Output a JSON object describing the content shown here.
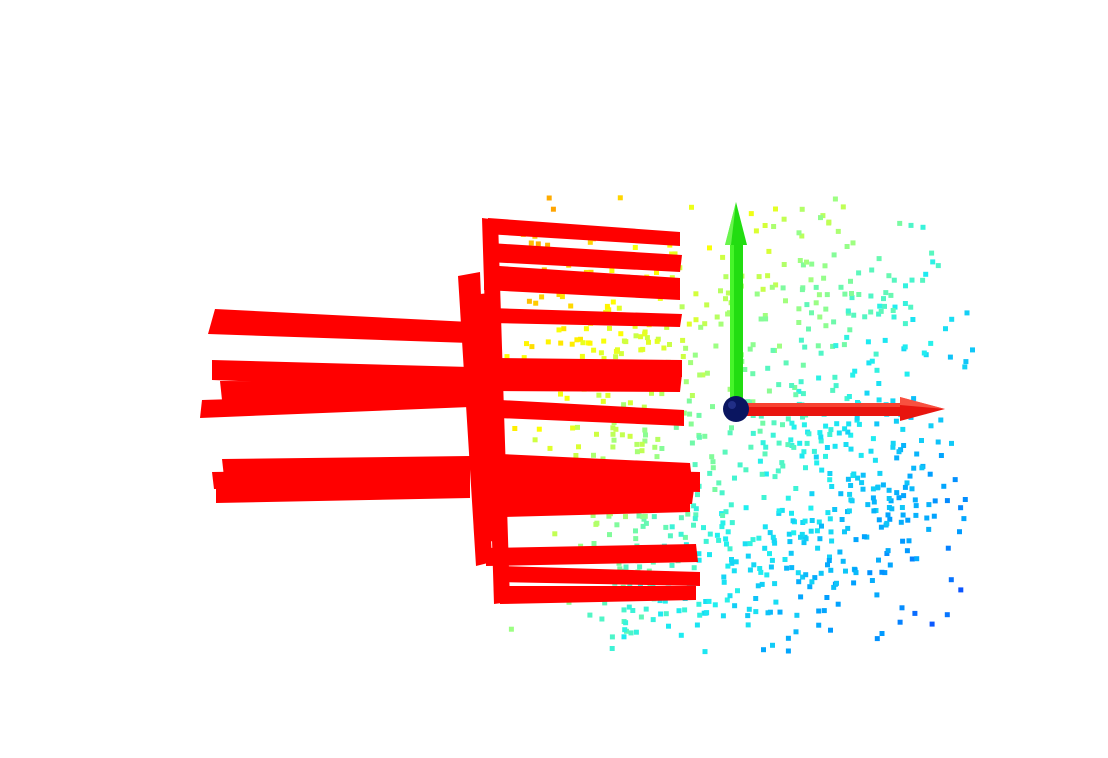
{
  "scene": {
    "background": "#ffffff",
    "colors": {
      "gripper": "#ff0000",
      "x_axis": "#e8150f",
      "y_axis": "#22dd11",
      "origin": "#0a1560",
      "colormap": [
        "#1040ff",
        "#00a0ff",
        "#20f0f0",
        "#a0ff80",
        "#ffff00",
        "#ffa000"
      ]
    },
    "icons": [
      "x-axis-arrow-icon",
      "y-axis-arrow-icon",
      "origin-sphere-icon"
    ],
    "point_cloud": {
      "colormap": "jet",
      "clusters": [
        {
          "cx": 870,
          "cy": 510,
          "sx": 55,
          "sy": 50,
          "n": 130
        },
        {
          "cx": 760,
          "cy": 560,
          "sx": 70,
          "sy": 45,
          "n": 130
        },
        {
          "cx": 640,
          "cy": 600,
          "sx": 55,
          "sy": 30,
          "n": 70
        },
        {
          "cx": 820,
          "cy": 300,
          "sx": 65,
          "sy": 70,
          "n": 170
        },
        {
          "cx": 790,
          "cy": 420,
          "sx": 75,
          "sy": 55,
          "n": 150
        },
        {
          "cx": 600,
          "cy": 310,
          "sx": 60,
          "sy": 45,
          "n": 140
        },
        {
          "cx": 610,
          "cy": 430,
          "sx": 55,
          "sy": 55,
          "n": 90
        },
        {
          "cx": 660,
          "cy": 510,
          "sx": 50,
          "sy": 40,
          "n": 80
        }
      ]
    }
  }
}
